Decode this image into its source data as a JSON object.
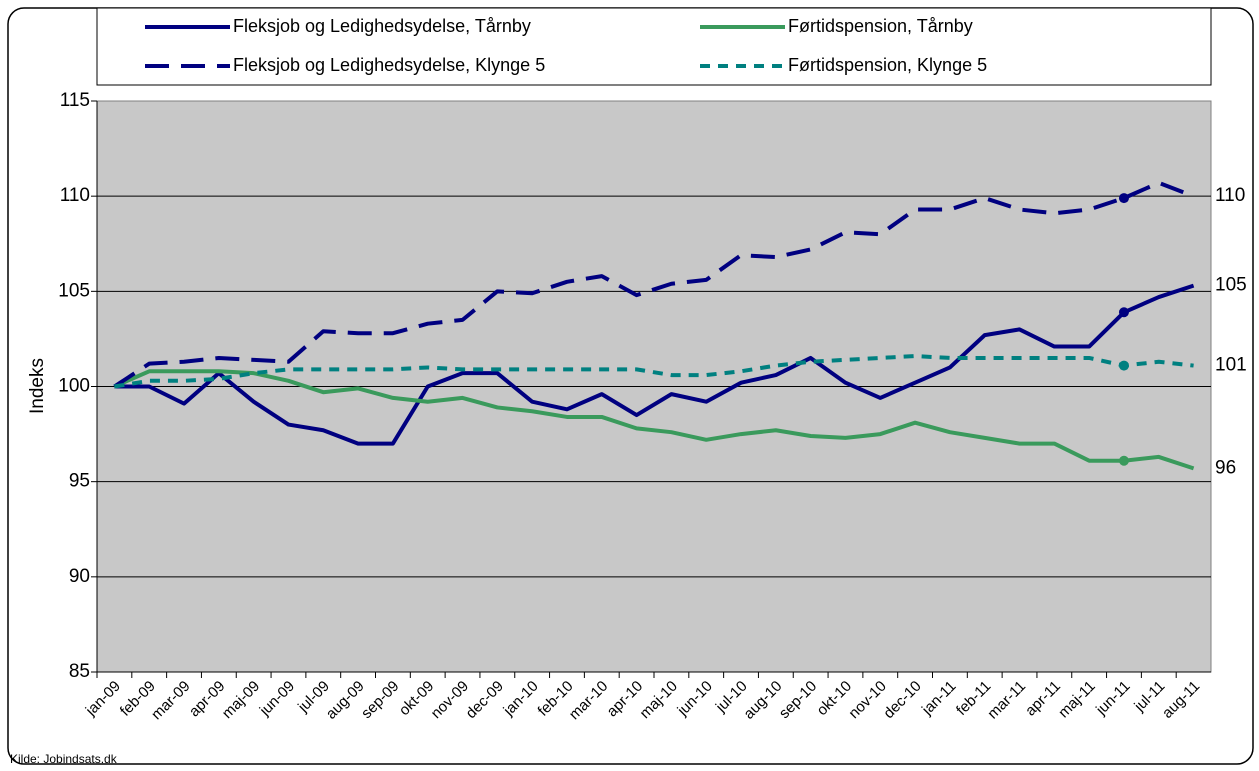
{
  "chart_data": {
    "type": "line",
    "y_label": "Indeks",
    "source": "Kilde: Jobindsats.dk",
    "categories": [
      "jan-09",
      "feb-09",
      "mar-09",
      "apr-09",
      "maj-09",
      "jun-09",
      "jul-09",
      "aug-09",
      "sep-09",
      "okt-09",
      "nov-09",
      "dec-09",
      "jan-10",
      "feb-10",
      "mar-10",
      "apr-10",
      "maj-10",
      "jun-10",
      "jul-10",
      "aug-10",
      "sep-10",
      "okt-10",
      "nov-10",
      "dec-10",
      "jan-11",
      "feb-11",
      "mar-11",
      "apr-11",
      "maj-11",
      "jun-11",
      "jul-11",
      "aug-11"
    ],
    "ylim": [
      85,
      115
    ],
    "yticks": [
      85,
      90,
      95,
      100,
      105,
      110,
      115
    ],
    "grid": true,
    "markers_at": [
      29
    ],
    "series": [
      {
        "name": "Fleksjob og Ledighedsydelse, Tårnby",
        "color": "#000080",
        "dash": "solid",
        "end_label": "105",
        "values": [
          100,
          100,
          99.1,
          100.7,
          99.2,
          98.0,
          97.7,
          97.0,
          97.0,
          100,
          100.7,
          100.7,
          99.2,
          98.8,
          99.6,
          98.5,
          99.6,
          99.2,
          100.2,
          100.6,
          101.5,
          100.2,
          99.4,
          100.2,
          101.0,
          102.7,
          103.0,
          102.1,
          102.1,
          103.9,
          104.7,
          105.3
        ]
      },
      {
        "name": "Førtidspension, Tårnby",
        "color": "#3a9a5c",
        "dash": "solid",
        "end_label": "96",
        "values": [
          100,
          100.8,
          100.8,
          100.8,
          100.7,
          100.3,
          99.7,
          99.9,
          99.4,
          99.2,
          99.4,
          98.9,
          98.7,
          98.4,
          98.4,
          97.8,
          97.6,
          97.2,
          97.5,
          97.7,
          97.4,
          97.3,
          97.5,
          98.1,
          97.6,
          97.3,
          97.0,
          97.0,
          96.1,
          96.1,
          96.3,
          95.7
        ]
      },
      {
        "name": "Fleksjob og Ledighedsydelse, Klynge 5",
        "color": "#000080",
        "dash": "dashed",
        "end_label": "110",
        "values": [
          100,
          101.2,
          101.3,
          101.5,
          101.4,
          101.3,
          102.9,
          102.8,
          102.8,
          103.3,
          103.5,
          105.0,
          104.9,
          105.5,
          105.8,
          104.8,
          105.4,
          105.6,
          106.9,
          106.8,
          107.2,
          108.1,
          108.0,
          109.3,
          109.3,
          109.9,
          109.3,
          109.1,
          109.3,
          109.9,
          110.7,
          110.0
        ]
      },
      {
        "name": "Førtidspension, Klynge 5",
        "color": "#008080",
        "dash": "dotted",
        "end_label": "101",
        "values": [
          100,
          100.3,
          100.3,
          100.4,
          100.7,
          100.9,
          100.9,
          100.9,
          100.9,
          101.0,
          100.9,
          100.9,
          100.9,
          100.9,
          100.9,
          100.9,
          100.6,
          100.6,
          100.8,
          101.1,
          101.3,
          101.4,
          101.5,
          101.6,
          101.5,
          101.5,
          101.5,
          101.5,
          101.5,
          101.1,
          101.3,
          101.1
        ]
      }
    ]
  }
}
